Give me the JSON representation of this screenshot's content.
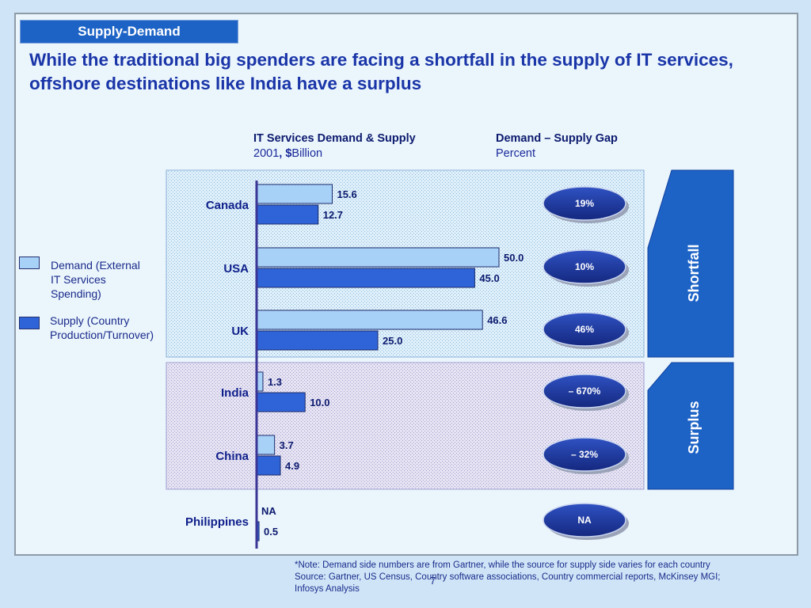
{
  "header": {
    "section_tag": "Supply-Demand",
    "headline": "While the traditional big spenders are facing a shortfall in the supply of IT services, offshore destinations like India have a surplus"
  },
  "left_heading": {
    "title": "IT Services Demand  & Supply",
    "year": "2001",
    "unit_sep": ", ",
    "unit_symbol": "$",
    "unit_word": "Billion"
  },
  "right_heading": {
    "title": "Demand – Supply Gap",
    "unit": "Percent"
  },
  "legend": [
    {
      "label_lines": [
        "Demand (External",
        "IT Services",
        "Spending)"
      ],
      "color": "#a8d1f8"
    },
    {
      "label_lines": [
        "Supply (Country",
        "Production/Turnover)"
      ],
      "color": "#2f64d8"
    }
  ],
  "chart_data": {
    "type": "bar",
    "orientation": "horizontal",
    "categories": [
      "Canada",
      "USA",
      "UK",
      "India",
      "China",
      "Philippines"
    ],
    "series": [
      {
        "name": "Demand (External IT Services Spending)",
        "values": [
          15.6,
          50.0,
          46.6,
          1.3,
          3.7,
          null
        ],
        "labels": [
          "15.6",
          "50.0",
          "46.6",
          "1.3",
          "3.7",
          "NA"
        ],
        "color": "#a8d1f8"
      },
      {
        "name": "Supply (Country Production/Turnover)",
        "values": [
          12.7,
          45.0,
          25.0,
          10.0,
          4.9,
          0.5
        ],
        "labels": [
          "12.7",
          "45.0",
          "25.0",
          "10.0",
          "4.9",
          "0.5"
        ],
        "color": "#2f64d8"
      }
    ],
    "gap_labels": [
      "19%",
      "10%",
      "46%",
      "– 670%",
      "– 32%",
      "NA"
    ],
    "groups": [
      {
        "label": "Shortfall",
        "categories": [
          "Canada",
          "USA",
          "UK"
        ]
      },
      {
        "label": "Surplus",
        "categories": [
          "India",
          "China"
        ]
      }
    ],
    "xlim": [
      0,
      50
    ],
    "grid": false
  },
  "colors": {
    "tag_bg": "#1d63c6",
    "headline": "#1a35a8",
    "arrow": "#1d63c6",
    "oval": "#1a34a0"
  },
  "footnote": {
    "note": "*Note: Demand side numbers are from Gartner, while the source for supply side varies for each country",
    "source": "Source: Gartner, US Census, Country software associations, Country commercial reports, McKinsey MGI; Infosys Analysis"
  },
  "page_number": "7"
}
